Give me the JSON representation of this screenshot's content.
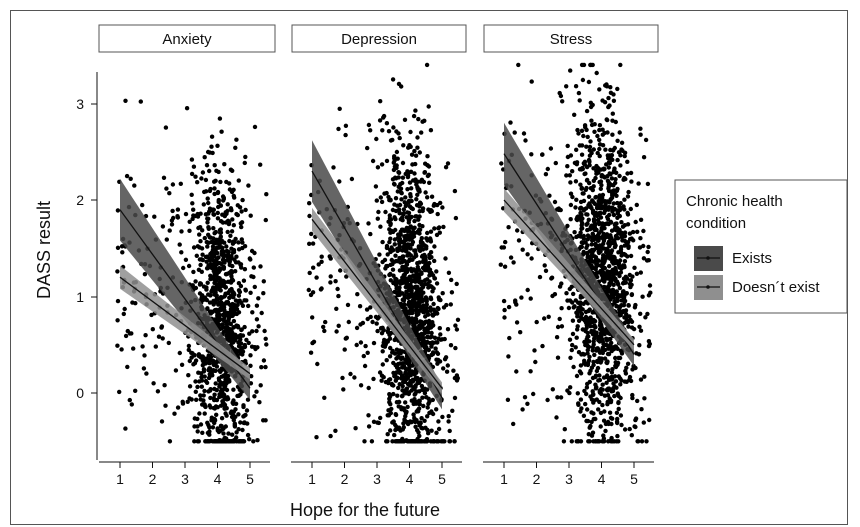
{
  "chart_data": {
    "type": "scatter",
    "facets": [
      "Anxiety",
      "Depression",
      "Stress"
    ],
    "xlabel": "Hope for the future",
    "ylabel": "DASS result",
    "xlim": [
      0.4,
      5.6
    ],
    "ylim": [
      -0.55,
      3.5
    ],
    "x_ticks": [
      "1",
      "2",
      "3",
      "4",
      "5"
    ],
    "y_ticks": [
      "0",
      "1",
      "2",
      "3"
    ],
    "legend": {
      "title_line1": "Chronic health",
      "title_line2": "condition",
      "entries": [
        {
          "label": "Exists",
          "color": "#4a4a4a"
        },
        {
          "label": "Doesn´t exist",
          "color": "#8f8f8f"
        }
      ]
    },
    "regression": {
      "Anxiety": {
        "exists": {
          "x": [
            1,
            5
          ],
          "y": [
            1.9,
            0.05
          ],
          "band": [
            0.32,
            0.12
          ]
        },
        "doesnt_exist": {
          "x": [
            1,
            5
          ],
          "y": [
            1.2,
            0.2
          ],
          "band": [
            0.12,
            0.06
          ]
        }
      },
      "Depression": {
        "exists": {
          "x": [
            1,
            5
          ],
          "y": [
            2.3,
            -0.05
          ],
          "band": [
            0.32,
            0.12
          ]
        },
        "doesnt_exist": {
          "x": [
            1,
            5
          ],
          "y": [
            1.8,
            0.05
          ],
          "band": [
            0.12,
            0.06
          ]
        }
      },
      "Stress": {
        "exists": {
          "x": [
            1,
            5
          ],
          "y": [
            2.48,
            0.4
          ],
          "band": [
            0.32,
            0.12
          ]
        },
        "doesnt_exist": {
          "x": [
            1,
            5
          ],
          "y": [
            2.0,
            0.5
          ],
          "band": [
            0.12,
            0.06
          ]
        }
      }
    },
    "point_cloud": {
      "Anxiety": {
        "n": 1200,
        "center_x": 4.1,
        "center_y": 0.45,
        "spread_x": 0.7,
        "spread_y": 0.75
      },
      "Depression": {
        "n": 1400,
        "center_x": 4.0,
        "center_y": 0.55,
        "spread_x": 0.75,
        "spread_y": 0.8
      },
      "Stress": {
        "n": 1500,
        "center_x": 4.0,
        "center_y": 0.9,
        "spread_x": 0.8,
        "spread_y": 0.8
      }
    },
    "grid": false,
    "legend_position": "right"
  }
}
